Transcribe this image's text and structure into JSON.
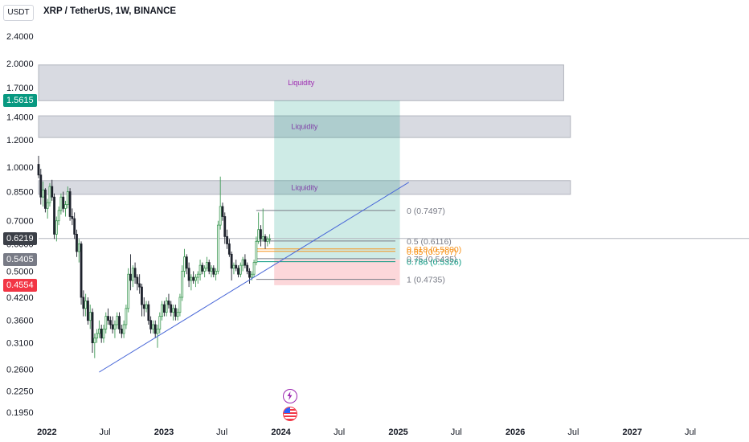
{
  "header": {
    "unit": "USDT",
    "title": "XRP / TetherUS, 1W, BINANCE"
  },
  "price_badges": [
    {
      "label": "1.5615",
      "value": 1.5615,
      "color": "#089981"
    },
    {
      "label": "0.6219",
      "value": 0.6219,
      "color": "#3b3f47"
    },
    {
      "label": "0.5405",
      "value": 0.5405,
      "color": "#787b86"
    },
    {
      "label": "0.4554",
      "value": 0.4554,
      "color": "#f23645"
    }
  ],
  "icons": [
    {
      "name": "lightning-icon",
      "color": "#9c27b0"
    },
    {
      "name": "us-flag-icon",
      "color": "#f23645"
    }
  ],
  "chart_data": {
    "type": "candlestick",
    "title": "XRP / TetherUS, 1W, BINANCE",
    "y_scale": "log",
    "ylim": [
      0.18,
      2.6
    ],
    "xlim": [
      "2021-12-06",
      "2027-12-31"
    ],
    "y_ticks": [
      "2.4000",
      "2.0000",
      "1.7000",
      "1.4000",
      "1.2000",
      "1.0000",
      "0.8500",
      "0.7000",
      "0.6000",
      "0.5000",
      "0.4200",
      "0.3600",
      "0.3100",
      "0.2600",
      "0.2250",
      "0.1950"
    ],
    "y_tick_values": [
      2.4,
      2.0,
      1.7,
      1.4,
      1.2,
      1.0,
      0.85,
      0.7,
      0.6,
      0.5,
      0.42,
      0.36,
      0.31,
      0.26,
      0.225,
      0.195
    ],
    "x_ticks": [
      {
        "label": "2022",
        "date": "2022-01-01",
        "bold": true
      },
      {
        "label": "Jul",
        "date": "2022-07-01",
        "bold": false
      },
      {
        "label": "2023",
        "date": "2023-01-01",
        "bold": true
      },
      {
        "label": "Jul",
        "date": "2023-07-01",
        "bold": false
      },
      {
        "label": "2024",
        "date": "2024-01-01",
        "bold": true
      },
      {
        "label": "Jul",
        "date": "2024-07-01",
        "bold": false
      },
      {
        "label": "2025",
        "date": "2025-01-01",
        "bold": true
      },
      {
        "label": "Jul",
        "date": "2025-07-01",
        "bold": false
      },
      {
        "label": "2026",
        "date": "2026-01-01",
        "bold": true
      },
      {
        "label": "Jul",
        "date": "2026-07-01",
        "bold": false
      },
      {
        "label": "2027",
        "date": "2027-01-01",
        "bold": true
      },
      {
        "label": "Jul",
        "date": "2027-07-01",
        "bold": false
      }
    ],
    "up_color": "#3f9a55",
    "down_color": "#1e222d",
    "candles_start": "2021-12-06",
    "candles_interval_days": 7,
    "candles": [
      [
        1.02,
        1.08,
        0.93,
        0.95
      ],
      [
        0.95,
        0.99,
        0.78,
        0.82
      ],
      [
        0.82,
        0.91,
        0.77,
        0.86
      ],
      [
        0.86,
        0.87,
        0.74,
        0.76
      ],
      [
        0.76,
        0.81,
        0.71,
        0.79
      ],
      [
        0.79,
        0.9,
        0.77,
        0.88
      ],
      [
        0.88,
        0.92,
        0.8,
        0.82
      ],
      [
        0.82,
        0.84,
        0.62,
        0.64
      ],
      [
        0.64,
        0.72,
        0.61,
        0.7
      ],
      [
        0.7,
        0.77,
        0.68,
        0.75
      ],
      [
        0.75,
        0.84,
        0.73,
        0.82
      ],
      [
        0.82,
        0.85,
        0.74,
        0.76
      ],
      [
        0.76,
        0.8,
        0.72,
        0.78
      ],
      [
        0.78,
        0.88,
        0.76,
        0.85
      ],
      [
        0.85,
        0.87,
        0.7,
        0.72
      ],
      [
        0.72,
        0.76,
        0.68,
        0.71
      ],
      [
        0.71,
        0.74,
        0.62,
        0.64
      ],
      [
        0.64,
        0.66,
        0.55,
        0.57
      ],
      [
        0.57,
        0.62,
        0.53,
        0.6
      ],
      [
        0.6,
        0.61,
        0.4,
        0.42
      ],
      [
        0.42,
        0.44,
        0.37,
        0.39
      ],
      [
        0.39,
        0.43,
        0.37,
        0.41
      ],
      [
        0.41,
        0.42,
        0.35,
        0.36
      ],
      [
        0.36,
        0.4,
        0.34,
        0.38
      ],
      [
        0.38,
        0.39,
        0.29,
        0.31
      ],
      [
        0.31,
        0.33,
        0.28,
        0.32
      ],
      [
        0.32,
        0.34,
        0.31,
        0.33
      ],
      [
        0.33,
        0.36,
        0.32,
        0.34
      ],
      [
        0.34,
        0.35,
        0.31,
        0.32
      ],
      [
        0.32,
        0.35,
        0.31,
        0.34
      ],
      [
        0.34,
        0.38,
        0.33,
        0.37
      ],
      [
        0.37,
        0.39,
        0.35,
        0.36
      ],
      [
        0.36,
        0.37,
        0.34,
        0.35
      ],
      [
        0.35,
        0.37,
        0.33,
        0.34
      ],
      [
        0.34,
        0.36,
        0.32,
        0.35
      ],
      [
        0.35,
        0.38,
        0.34,
        0.37
      ],
      [
        0.37,
        0.38,
        0.33,
        0.34
      ],
      [
        0.34,
        0.35,
        0.32,
        0.33
      ],
      [
        0.33,
        0.36,
        0.32,
        0.35
      ],
      [
        0.35,
        0.4,
        0.34,
        0.39
      ],
      [
        0.39,
        0.51,
        0.38,
        0.49
      ],
      [
        0.49,
        0.56,
        0.44,
        0.47
      ],
      [
        0.47,
        0.52,
        0.45,
        0.51
      ],
      [
        0.51,
        0.53,
        0.46,
        0.48
      ],
      [
        0.48,
        0.49,
        0.44,
        0.46
      ],
      [
        0.46,
        0.49,
        0.43,
        0.45
      ],
      [
        0.45,
        0.46,
        0.37,
        0.4
      ],
      [
        0.4,
        0.42,
        0.37,
        0.39
      ],
      [
        0.39,
        0.41,
        0.38,
        0.4
      ],
      [
        0.4,
        0.41,
        0.35,
        0.36
      ],
      [
        0.36,
        0.37,
        0.33,
        0.34
      ],
      [
        0.34,
        0.36,
        0.33,
        0.35
      ],
      [
        0.35,
        0.36,
        0.32,
        0.33
      ],
      [
        0.33,
        0.35,
        0.3,
        0.34
      ],
      [
        0.34,
        0.38,
        0.33,
        0.37
      ],
      [
        0.37,
        0.41,
        0.36,
        0.4
      ],
      [
        0.4,
        0.41,
        0.37,
        0.38
      ],
      [
        0.38,
        0.42,
        0.37,
        0.41
      ],
      [
        0.41,
        0.43,
        0.39,
        0.4
      ],
      [
        0.4,
        0.41,
        0.37,
        0.38
      ],
      [
        0.38,
        0.4,
        0.36,
        0.39
      ],
      [
        0.39,
        0.4,
        0.36,
        0.37
      ],
      [
        0.37,
        0.39,
        0.36,
        0.38
      ],
      [
        0.38,
        0.43,
        0.37,
        0.42
      ],
      [
        0.42,
        0.52,
        0.41,
        0.5
      ],
      [
        0.5,
        0.58,
        0.48,
        0.55
      ],
      [
        0.55,
        0.56,
        0.49,
        0.51
      ],
      [
        0.51,
        0.53,
        0.45,
        0.47
      ],
      [
        0.47,
        0.49,
        0.44,
        0.48
      ],
      [
        0.48,
        0.5,
        0.46,
        0.47
      ],
      [
        0.47,
        0.49,
        0.45,
        0.48
      ],
      [
        0.48,
        0.5,
        0.46,
        0.49
      ],
      [
        0.49,
        0.54,
        0.47,
        0.52
      ],
      [
        0.52,
        0.53,
        0.49,
        0.5
      ],
      [
        0.5,
        0.52,
        0.48,
        0.51
      ],
      [
        0.51,
        0.55,
        0.5,
        0.53
      ],
      [
        0.53,
        0.54,
        0.49,
        0.5
      ],
      [
        0.5,
        0.52,
        0.48,
        0.51
      ],
      [
        0.51,
        0.52,
        0.48,
        0.49
      ],
      [
        0.49,
        0.51,
        0.47,
        0.5
      ],
      [
        0.5,
        0.7,
        0.49,
        0.68
      ],
      [
        0.68,
        0.94,
        0.66,
        0.77
      ],
      [
        0.77,
        0.79,
        0.7,
        0.72
      ],
      [
        0.72,
        0.74,
        0.6,
        0.63
      ],
      [
        0.63,
        0.66,
        0.58,
        0.6
      ],
      [
        0.6,
        0.62,
        0.55,
        0.56
      ],
      [
        0.56,
        0.57,
        0.47,
        0.51
      ],
      [
        0.51,
        0.53,
        0.49,
        0.52
      ],
      [
        0.52,
        0.54,
        0.5,
        0.51
      ],
      [
        0.51,
        0.52,
        0.48,
        0.49
      ],
      [
        0.49,
        0.53,
        0.48,
        0.52
      ],
      [
        0.52,
        0.55,
        0.5,
        0.54
      ],
      [
        0.54,
        0.56,
        0.51,
        0.52
      ],
      [
        0.52,
        0.53,
        0.49,
        0.5
      ],
      [
        0.5,
        0.51,
        0.46,
        0.48
      ],
      [
        0.48,
        0.5,
        0.47,
        0.49
      ],
      [
        0.49,
        0.54,
        0.48,
        0.53
      ],
      [
        0.53,
        0.63,
        0.52,
        0.61
      ],
      [
        0.61,
        0.74,
        0.6,
        0.66
      ],
      [
        0.66,
        0.68,
        0.59,
        0.62
      ],
      [
        0.62,
        0.76,
        0.61,
        0.63
      ],
      [
        0.63,
        0.64,
        0.58,
        0.61
      ],
      [
        0.61,
        0.63,
        0.59,
        0.62
      ],
      [
        0.62,
        0.64,
        0.6,
        0.62
      ]
    ],
    "zones": [
      {
        "label": "Liquidity",
        "from": "2021-12-06",
        "to": "2026-06-01",
        "top": 1.98,
        "bottom": 1.56
      },
      {
        "label": "Liquidity",
        "from": "2021-12-06",
        "to": "2026-06-22",
        "top": 1.41,
        "bottom": 1.22
      },
      {
        "label": "Liquidity",
        "from": "2021-12-06",
        "to": "2026-06-22",
        "top": 0.915,
        "bottom": 0.835
      }
    ],
    "position": {
      "from": "2023-12-11",
      "to": "2025-01-06",
      "target": 1.5615,
      "entry": 0.5405,
      "stop": 0.4554,
      "profit_color": "#089981",
      "loss_color": "#f23645"
    },
    "trendline": {
      "from": {
        "date": "2022-06-13",
        "value": 0.255
      },
      "to": {
        "date": "2025-02-03",
        "value": 0.905
      },
      "color": "#4a68d8"
    },
    "price_line": {
      "value": 0.6219,
      "color": "#b2b5be"
    },
    "fib": {
      "from": "2023-10-16",
      "to": "2024-12-23",
      "label_date": "2025-01-27",
      "levels": [
        {
          "ratio": "0",
          "value": 0.7497,
          "label": "0 (0.7497)",
          "color": "#787b86"
        },
        {
          "ratio": "0.5",
          "value": 0.6116,
          "label": "0.5 (0.6116)",
          "color": "#787b86"
        },
        {
          "ratio": "0.618",
          "value": 0.58,
          "label": "0.618 (0.5800)",
          "color": "#f7931a"
        },
        {
          "ratio": "0.65",
          "value": 0.5707,
          "label": "0.65 (0.5707)",
          "color": "#f7931a"
        },
        {
          "ratio": "0.75",
          "value": 0.5435,
          "label": "0.75 (0.5435)",
          "color": "#787b86"
        },
        {
          "ratio": "0.786",
          "value": 0.5326,
          "label": "0.786 (0.5326)",
          "color": "#089981"
        },
        {
          "ratio": "1",
          "value": 0.4735,
          "label": "1 (0.4735)",
          "color": "#787b86"
        }
      ]
    }
  }
}
